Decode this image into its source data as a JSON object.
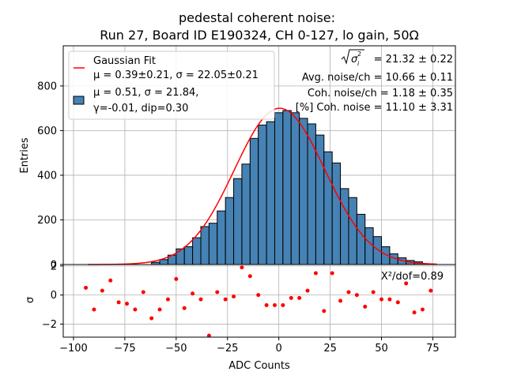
{
  "chart_data": {
    "type": "bar",
    "title_line1": "pedestal coherent noise:",
    "title_line2": "Run 27, Board ID E190324, CH 0-127, lo gain, 50Ω",
    "xlabel": "ADC Counts",
    "ylabel_top": "Entries",
    "ylabel_bottom": "σ",
    "grid": true,
    "legend_placement": "upper-left",
    "xlim": [
      -105,
      86
    ],
    "ylim_top": [
      0,
      980
    ],
    "ylim_bottom": [
      -2.9,
      2.1
    ],
    "xticks": [
      -100,
      -75,
      -50,
      -25,
      0,
      25,
      50,
      75
    ],
    "xtick_labels": [
      "−100",
      "−75",
      "−50",
      "−25",
      "0",
      "25",
      "50",
      "75"
    ],
    "yticks_top": [
      0,
      200,
      400,
      600,
      800
    ],
    "yticks_bottom": [
      -2,
      0,
      2
    ],
    "ytick_labels_bottom": [
      "−2",
      "0",
      "2"
    ],
    "colors": {
      "bar": "#4682b4",
      "fit": "#ff0000",
      "residual": "#ff0000"
    },
    "legend": {
      "fit_line1": "Gaussian Fit",
      "fit_line2": "μ = 0.39±0.21, σ = 22.05±0.21",
      "hist_line1": "μ = 0.51, σ = 21.84,",
      "hist_line2": "γ=-0.01, dip=0.30"
    },
    "annotations": {
      "sigma_total": "= 21.32 ± 0.22",
      "avg_noise": "Avg. noise/ch = 10.66 ± 0.11",
      "coh_noise": "Coh. noise/ch = 1.18 ± 0.35",
      "coh_pct": "[%] Coh. noise = 11.10  ± 3.31",
      "chi2": "X²/dof=0.89"
    },
    "histogram": {
      "bin_width": 4,
      "bin_left_edges": [
        -62,
        -58,
        -54,
        -50,
        -46,
        -42,
        -38,
        -34,
        -30,
        -26,
        -22,
        -18,
        -14,
        -10,
        -6,
        -2,
        2,
        6,
        10,
        14,
        18,
        22,
        26,
        30,
        34,
        38,
        42,
        46,
        50,
        54,
        58,
        62,
        66
      ],
      "counts": [
        10,
        22,
        42,
        70,
        80,
        120,
        170,
        185,
        240,
        300,
        385,
        450,
        565,
        625,
        640,
        680,
        690,
        680,
        655,
        630,
        580,
        505,
        455,
        340,
        300,
        225,
        165,
        125,
        80,
        48,
        30,
        18,
        12
      ]
    },
    "fit": {
      "mu": 0.39,
      "sigma": 22.05,
      "amplitude": 700,
      "x_range": [
        -93,
        77
      ]
    },
    "residuals": {
      "x": [
        -94,
        -90,
        -86,
        -82,
        -78,
        -74,
        -70,
        -66,
        -62,
        -58,
        -54,
        -50,
        -46,
        -42,
        -38,
        -34,
        -30,
        -26,
        -22,
        -18,
        -14,
        -10,
        -6,
        -2,
        2,
        6,
        10,
        14,
        18,
        22,
        26,
        30,
        34,
        38,
        42,
        46,
        50,
        54,
        58,
        62,
        66,
        70,
        74
      ],
      "y": [
        0.5,
        -1.0,
        0.3,
        1.0,
        -0.5,
        -0.6,
        -1.0,
        0.2,
        -1.6,
        -1.0,
        -0.3,
        1.1,
        -0.9,
        0.1,
        -0.3,
        -2.8,
        0.2,
        -0.3,
        -0.1,
        1.9,
        1.3,
        0.0,
        -0.7,
        -0.7,
        -0.7,
        -0.2,
        -0.2,
        0.3,
        1.5,
        -1.1,
        1.5,
        -0.4,
        0.2,
        0.0,
        -0.8,
        0.2,
        -0.3,
        -0.3,
        -0.5,
        0.8,
        -1.2,
        -1.0,
        0.3
      ]
    }
  }
}
